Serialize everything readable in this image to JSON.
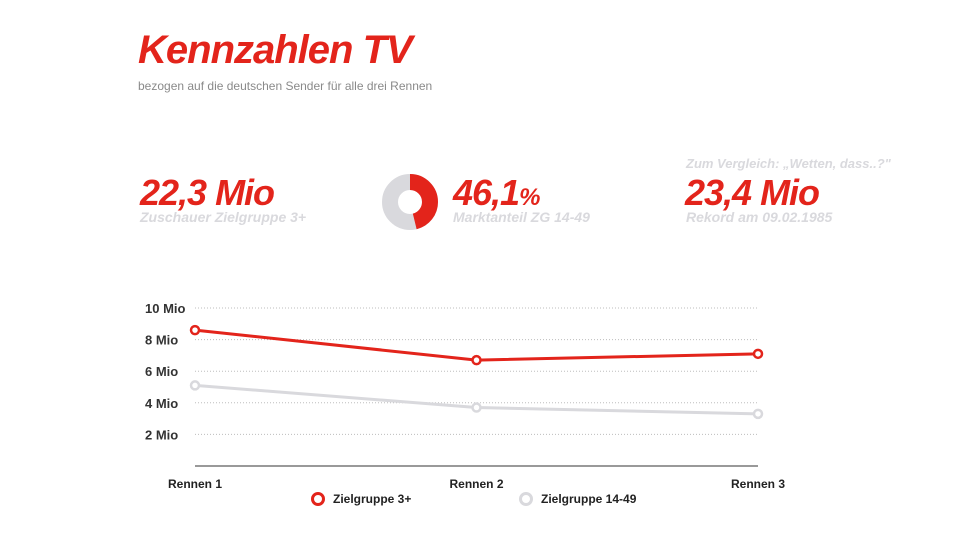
{
  "header": {
    "title": "Kennzahlen TV",
    "subtitle": "bezogen auf die deutschen Sender für alle drei Rennen"
  },
  "kpis": [
    {
      "value": "22,3 Mio",
      "label": "Zuschauer Zielgruppe 3+"
    },
    {
      "value": "46,1",
      "unit": "%",
      "label": "Marktanteil ZG 14-49",
      "share": 0.461
    },
    {
      "prelabel": "Zum Vergleich: „Wetten, dass..?\"",
      "value": "23,4 Mio",
      "label": "Rekord am 09.02.1985"
    }
  ],
  "colors": {
    "accent": "#e3241b",
    "secondary": "#d9d9dd",
    "grid": "#bdbdbd",
    "text": "#222222",
    "muted": "#8a8a8a"
  },
  "chart_data": {
    "type": "line",
    "categories": [
      "Rennen 1",
      "Rennen 2",
      "Rennen 3"
    ],
    "series": [
      {
        "name": "Zielgruppe 3+",
        "values": [
          8.6,
          6.7,
          7.1
        ],
        "color": "#e3241b"
      },
      {
        "name": "Zielgruppe 14-49",
        "values": [
          5.1,
          3.7,
          3.3
        ],
        "color": "#d9d9dd"
      }
    ],
    "yticks": [
      2,
      4,
      6,
      8,
      10
    ],
    "ytick_labels": [
      "2 Mio",
      "4 Mio",
      "6 Mio",
      "8 Mio",
      "10 Mio"
    ],
    "ylim": [
      0,
      10
    ],
    "grid": true,
    "legend": "bottom"
  }
}
